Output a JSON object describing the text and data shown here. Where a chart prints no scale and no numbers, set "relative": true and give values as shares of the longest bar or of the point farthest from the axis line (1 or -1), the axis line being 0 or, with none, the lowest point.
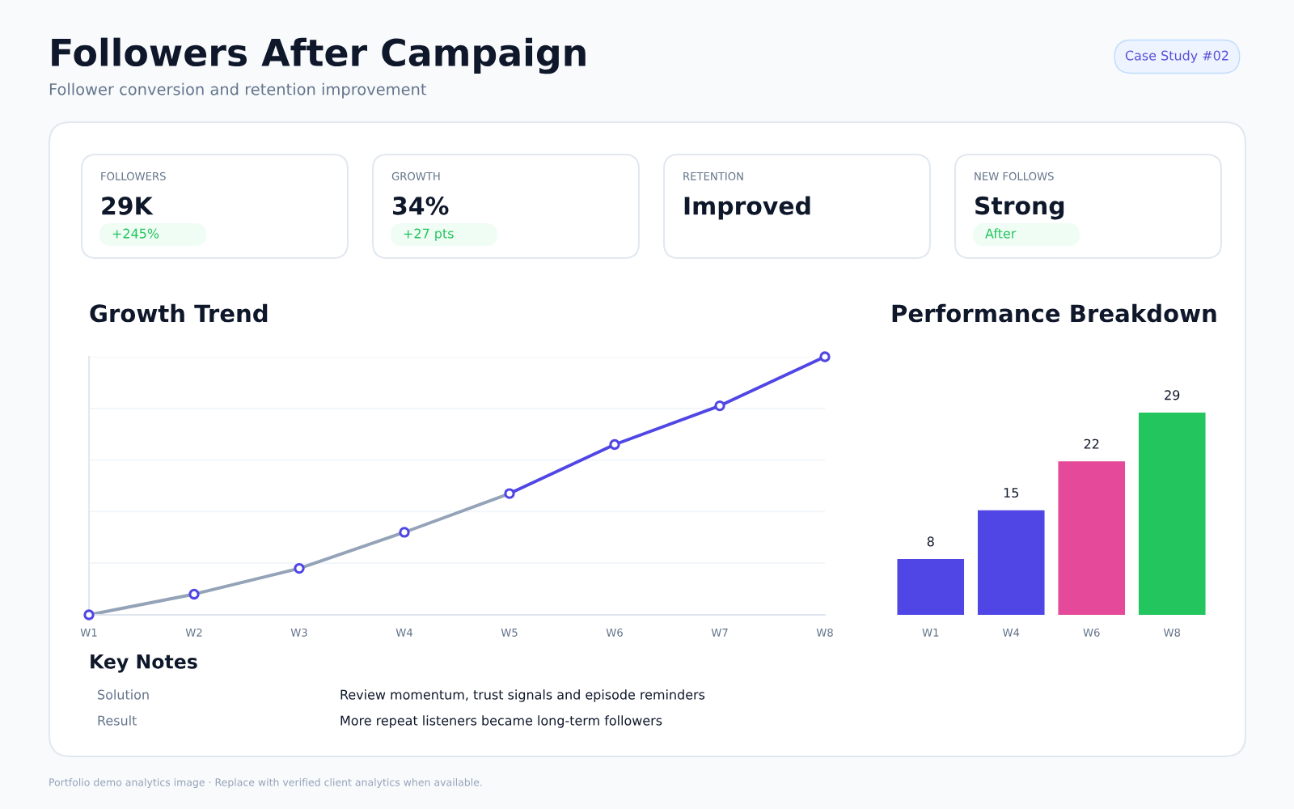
{
  "chart_data": [
    {
      "type": "other",
      "title": "Followers After Campaign",
      "subtitle": "Follower conversion and retention improvement",
      "annotations": [
        "Case Study #02"
      ]
    },
    {
      "type": "other",
      "title": "FOLLOWERS",
      "annotations": [
        "29K",
        "+245%"
      ]
    },
    {
      "type": "other",
      "title": "GROWTH",
      "annotations": [
        "34%",
        "+27 pts"
      ]
    },
    {
      "type": "other",
      "title": "RETENTION",
      "annotations": [
        "Improved"
      ]
    },
    {
      "type": "other",
      "title": "NEW FOLLOWS",
      "annotations": [
        "Strong",
        "After"
      ]
    },
    {
      "type": "line",
      "title": "Growth Trend",
      "categories": [
        "W1",
        "W2",
        "W3",
        "W4",
        "W5",
        "W6",
        "W7",
        "W8"
      ],
      "relative": true,
      "grid": "y",
      "tick_labels": "x",
      "series": [
        {
          "color": "#94a3b8",
          "values": [
            0,
            0.08,
            0.18,
            0.32,
            0.47,
            null,
            null,
            null
          ]
        },
        {
          "color": "#4f46e5",
          "values": [
            null,
            null,
            null,
            null,
            0.47,
            0.66,
            0.81,
            1
          ]
        },
        {
          "type": "scatter",
          "marker": "circle",
          "color": "#4f46e5",
          "values": [
            0,
            0.08,
            0.18,
            0.32,
            0.47,
            0.66,
            0.81,
            1
          ]
        }
      ]
    },
    {
      "type": "bar",
      "title": "Performance Breakdown",
      "categories": [
        "W1",
        "W4",
        "W6",
        "W8"
      ],
      "values": [
        8,
        15,
        22,
        29
      ],
      "colors": [
        "#4f46e5",
        "#4f46e5",
        "#e5499a",
        "#22c55e"
      ],
      "data_labels": true,
      "tick_labels": "x"
    },
    {
      "type": "other",
      "title": "Key Notes",
      "annotations": [
        "Solution",
        "Review momentum, trust signals and episode reminders",
        "Result",
        "More repeat listeners became long-term followers"
      ]
    },
    {
      "type": "other",
      "annotations": [
        "Portfolio demo analytics image · Replace with verified client analytics when available."
      ]
    }
  ]
}
